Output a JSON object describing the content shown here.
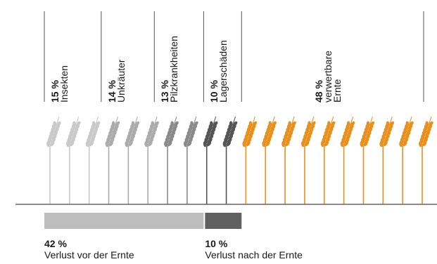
{
  "chart_data": {
    "type": "bar",
    "categories": [
      {
        "pct": "15 %",
        "label": [
          "Insekten"
        ],
        "value": 15,
        "color": "#c9c9c9"
      },
      {
        "pct": "14 %",
        "label": [
          "Unkräuter"
        ],
        "value": 14,
        "color": "#ababab"
      },
      {
        "pct": "13 %",
        "label": [
          "Pilzkrankheiten"
        ],
        "value": 13,
        "color": "#8a8a8a"
      },
      {
        "pct": "10 %",
        "label": [
          "Lagerschäden"
        ],
        "value": 10,
        "color": "#555555"
      },
      {
        "pct": "48 %",
        "label": [
          "verwertbare",
          "Ernte"
        ],
        "value": 48,
        "color": "#e8901e"
      }
    ],
    "summary": [
      {
        "pct": "42 %",
        "label": "Verlust vor der Ernte",
        "value": 42,
        "color": "#bdbdbd"
      },
      {
        "pct": "10 %",
        "label": "Verlust nach der Ernte",
        "value": 10,
        "color": "#606060"
      }
    ],
    "total": 100
  },
  "colors": {
    "stem_orange": "#e8901e",
    "axis": "#666666",
    "divider": "#555555"
  }
}
